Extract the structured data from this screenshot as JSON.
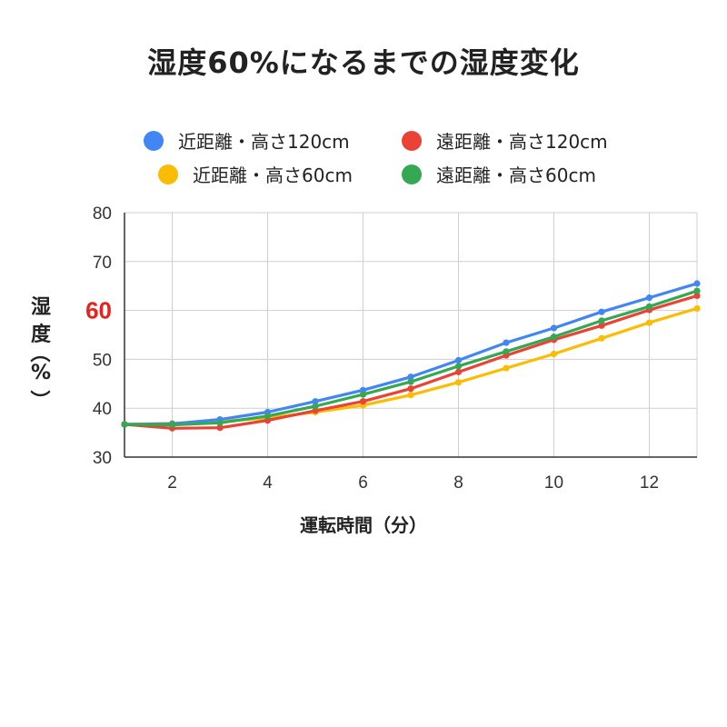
{
  "title": "湿度60%になるまでの湿度変化",
  "legend": [
    {
      "label": "近距離・高さ120cm",
      "color": "#4285F4"
    },
    {
      "label": "遠距離・高さ120cm",
      "color": "#EA4335"
    },
    {
      "label": "近距離・高さ60cm",
      "color": "#FBBC04"
    },
    {
      "label": "遠距離・高さ60cm",
      "color": "#34A853"
    }
  ],
  "axes": {
    "y_title_chars": [
      "湿",
      "度",
      "（",
      "%",
      "）"
    ],
    "x_title": "運転時間（分）",
    "highlight_tick": "60",
    "highlight_color": "#E8231E"
  },
  "chart_data": {
    "type": "line",
    "title": "湿度60%になるまでの湿度変化",
    "xlabel": "運転時間（分）",
    "ylabel": "湿度（%）",
    "x": [
      1,
      2,
      3,
      4,
      5,
      6,
      7,
      8,
      9,
      10,
      11,
      12,
      13
    ],
    "xlim": [
      1,
      13
    ],
    "ylim": [
      30,
      80
    ],
    "x_ticks": [
      2,
      4,
      6,
      8,
      10,
      12
    ],
    "y_ticks": [
      30,
      40,
      50,
      60,
      70,
      80
    ],
    "grid": true,
    "legend_position": "top",
    "series": [
      {
        "name": "近距離・高さ120cm",
        "color": "#4285F4",
        "values": [
          36.7,
          36.8,
          37.7,
          39.2,
          41.4,
          43.7,
          46.4,
          49.8,
          53.4,
          56.4,
          59.7,
          62.6,
          65.5
        ]
      },
      {
        "name": "遠距離・高さ120cm",
        "color": "#EA4335",
        "values": [
          36.7,
          35.9,
          36.0,
          37.5,
          39.5,
          41.4,
          44.0,
          47.4,
          50.8,
          54.0,
          56.9,
          60.1,
          63.0
        ]
      },
      {
        "name": "近距離・高さ60cm",
        "color": "#FBBC04",
        "values": [
          36.7,
          36.9,
          37.3,
          38.0,
          39.2,
          40.6,
          42.7,
          45.3,
          48.2,
          51.1,
          54.3,
          57.5,
          60.4
        ]
      },
      {
        "name": "遠距離・高さ60cm",
        "color": "#34A853",
        "values": [
          36.7,
          36.6,
          37.0,
          38.4,
          40.4,
          42.8,
          45.4,
          48.6,
          51.6,
          54.6,
          57.9,
          60.8,
          64.0
        ]
      }
    ]
  }
}
